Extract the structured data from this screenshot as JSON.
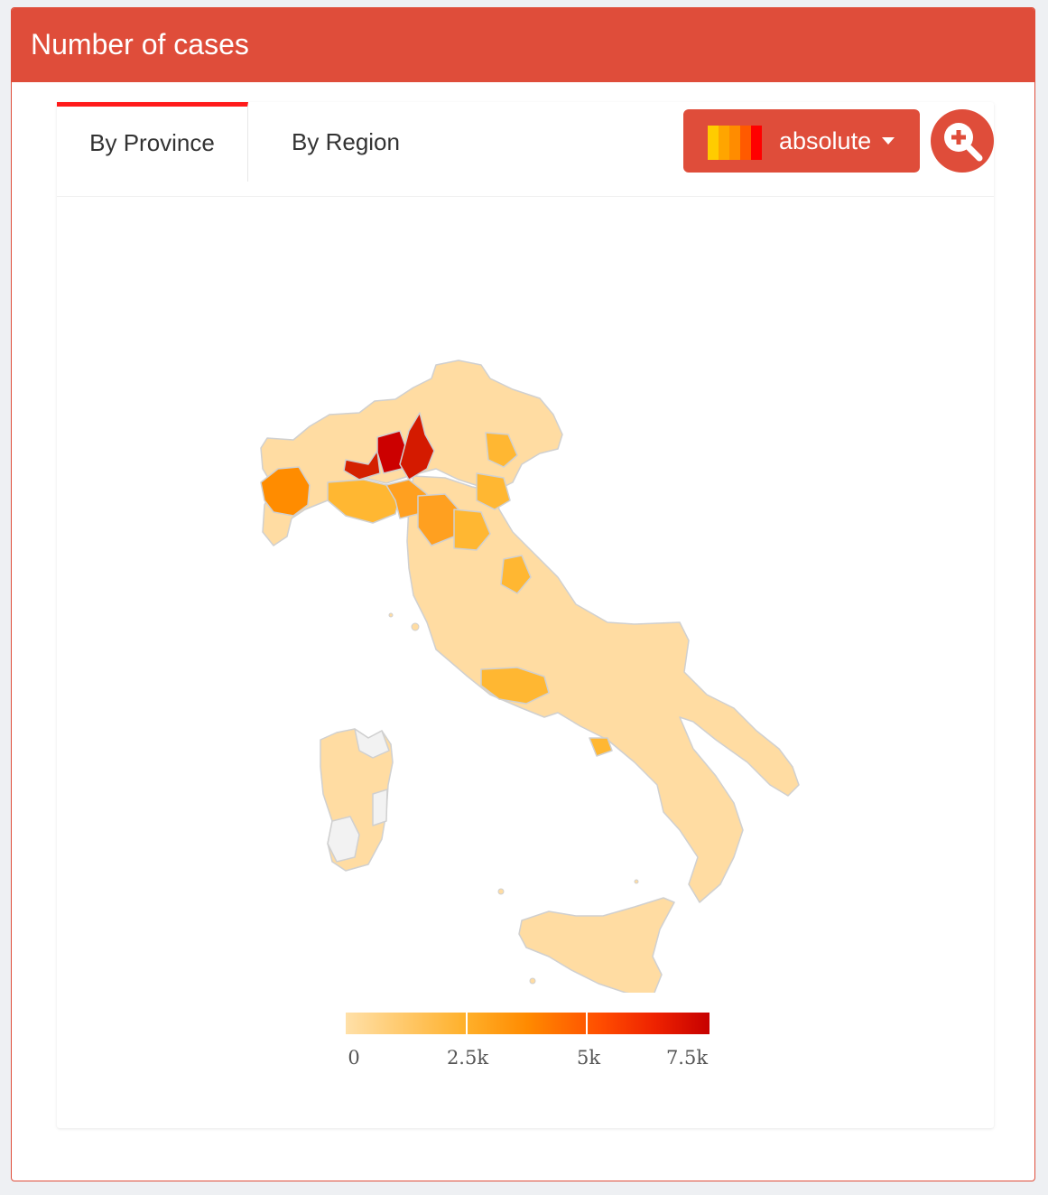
{
  "header": {
    "title": "Number of cases"
  },
  "tabs": [
    {
      "label": "By Province",
      "active": true
    },
    {
      "label": "By Region",
      "active": false
    }
  ],
  "scale_selector": {
    "label": "absolute",
    "swatch_colors": [
      "#ffcc00",
      "#ffa500",
      "#ff8c00",
      "#ff5a00",
      "#ff0000"
    ]
  },
  "zoom_button": {
    "icon": "zoom-in-icon"
  },
  "map": {
    "country": "Italy",
    "no_data_color": "#f2f2f2",
    "border_color": "#d0d0d0",
    "highlighted_provinces": [
      {
        "shade": "#cc0000",
        "level": "highest"
      },
      {
        "shade": "#d41a00",
        "level": "highest"
      },
      {
        "shade": "#d42000",
        "level": "very high"
      },
      {
        "shade": "#ff8c00",
        "level": "high"
      },
      {
        "shade": "#ffa020",
        "level": "medium-high"
      },
      {
        "shade": "#ffb732",
        "level": "medium"
      },
      {
        "shade": "#ffdca2",
        "level": "low"
      }
    ]
  },
  "legend": {
    "ticks": [
      "0",
      "2.5k",
      "5k",
      "7.5k"
    ],
    "tick_values": [
      0,
      2500,
      5000,
      7500
    ],
    "range": [
      0,
      7500
    ],
    "colors": [
      "#ffe0a8",
      "#ffb02a",
      "#ff8a00",
      "#ff4d00",
      "#ee2200",
      "#c60000"
    ]
  }
}
